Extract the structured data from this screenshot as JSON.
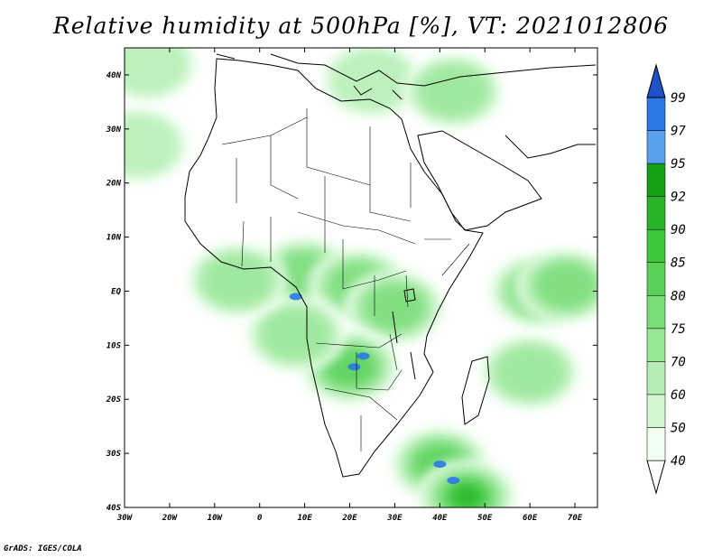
{
  "title": "Relative humidity at 500hPa [%], VT: 2021012806",
  "credit": "GrADS: IGES/COLA",
  "map": {
    "lon_range": [
      -30,
      75
    ],
    "lat_range": [
      -40,
      45
    ],
    "lon_ticks": [
      "30W",
      "20W",
      "10W",
      "0",
      "10E",
      "20E",
      "30E",
      "40E",
      "50E",
      "60E",
      "70E"
    ],
    "lat_ticks": [
      "40N",
      "30N",
      "20N",
      "10N",
      "EQ",
      "10S",
      "20S",
      "30S",
      "40S"
    ]
  },
  "colorbar": {
    "levels": [
      "40",
      "50",
      "60",
      "70",
      "75",
      "80",
      "85",
      "90",
      "92",
      "95",
      "97",
      "99"
    ],
    "colors": [
      "#f0fff0",
      "#d2f7d2",
      "#b4eeb4",
      "#96e696",
      "#78dc78",
      "#5ad25a",
      "#3cc83c",
      "#28b428",
      "#14a014",
      "#5aa0f0",
      "#2d78e6",
      "#1e50c8"
    ]
  },
  "fields": {
    "humid_blobs": [
      {
        "lon": -25,
        "lat": 42,
        "level": 2
      },
      {
        "lon": -27,
        "lat": 27,
        "level": 2
      },
      {
        "lon": 25,
        "lat": 39,
        "level": 2
      },
      {
        "lon": 43,
        "lat": 37,
        "level": 3
      },
      {
        "lon": 10,
        "lat": 3,
        "level": 4
      },
      {
        "lon": 22,
        "lat": 1,
        "level": 4
      },
      {
        "lon": 30,
        "lat": -3,
        "level": 4
      },
      {
        "lon": 20,
        "lat": -14,
        "level": 5
      },
      {
        "lon": 8,
        "lat": -8,
        "level": 3
      },
      {
        "lon": 62,
        "lat": 0,
        "level": 4
      },
      {
        "lon": 68,
        "lat": 1,
        "level": 4
      },
      {
        "lon": 60,
        "lat": -15,
        "level": 3
      },
      {
        "lon": 40,
        "lat": -32,
        "level": 5
      },
      {
        "lon": 46,
        "lat": -38,
        "level": 7
      },
      {
        "lon": -5,
        "lat": 2,
        "level": 3
      }
    ],
    "saturated_spots": [
      {
        "lon": 8,
        "lat": -1
      },
      {
        "lon": 21,
        "lat": -14
      },
      {
        "lon": 23,
        "lat": -12
      },
      {
        "lon": 40,
        "lat": -32
      },
      {
        "lon": 43,
        "lat": -35
      }
    ]
  }
}
